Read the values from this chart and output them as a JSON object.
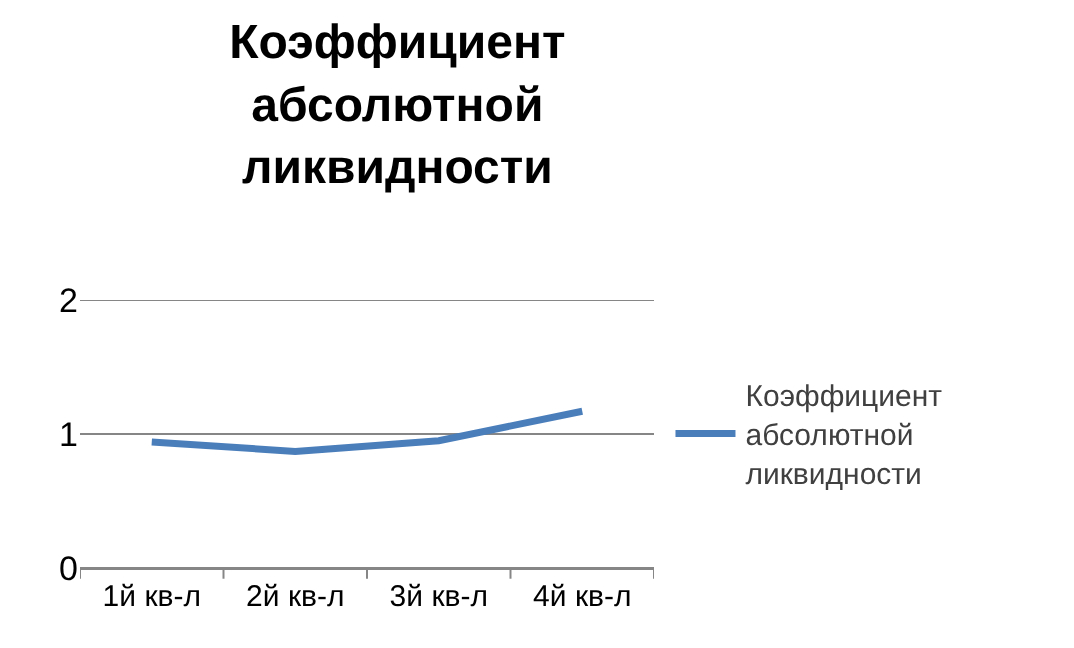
{
  "chart_data": {
    "type": "line",
    "title": "Коэффициент абсолютной ликвидности",
    "categories": [
      "1й кв-л",
      "2й кв-л",
      "3й кв-л",
      "4й кв-л"
    ],
    "series": [
      {
        "name": "Коэффициент абсолютной ликвидности",
        "color": "#4a7ebb",
        "values": [
          0.94,
          0.87,
          0.95,
          1.17
        ]
      }
    ],
    "ylim": [
      0,
      2
    ],
    "yticks": [
      0,
      1,
      2
    ],
    "grid": "y",
    "legend": "right",
    "marker": "none",
    "line_style": "solid"
  }
}
